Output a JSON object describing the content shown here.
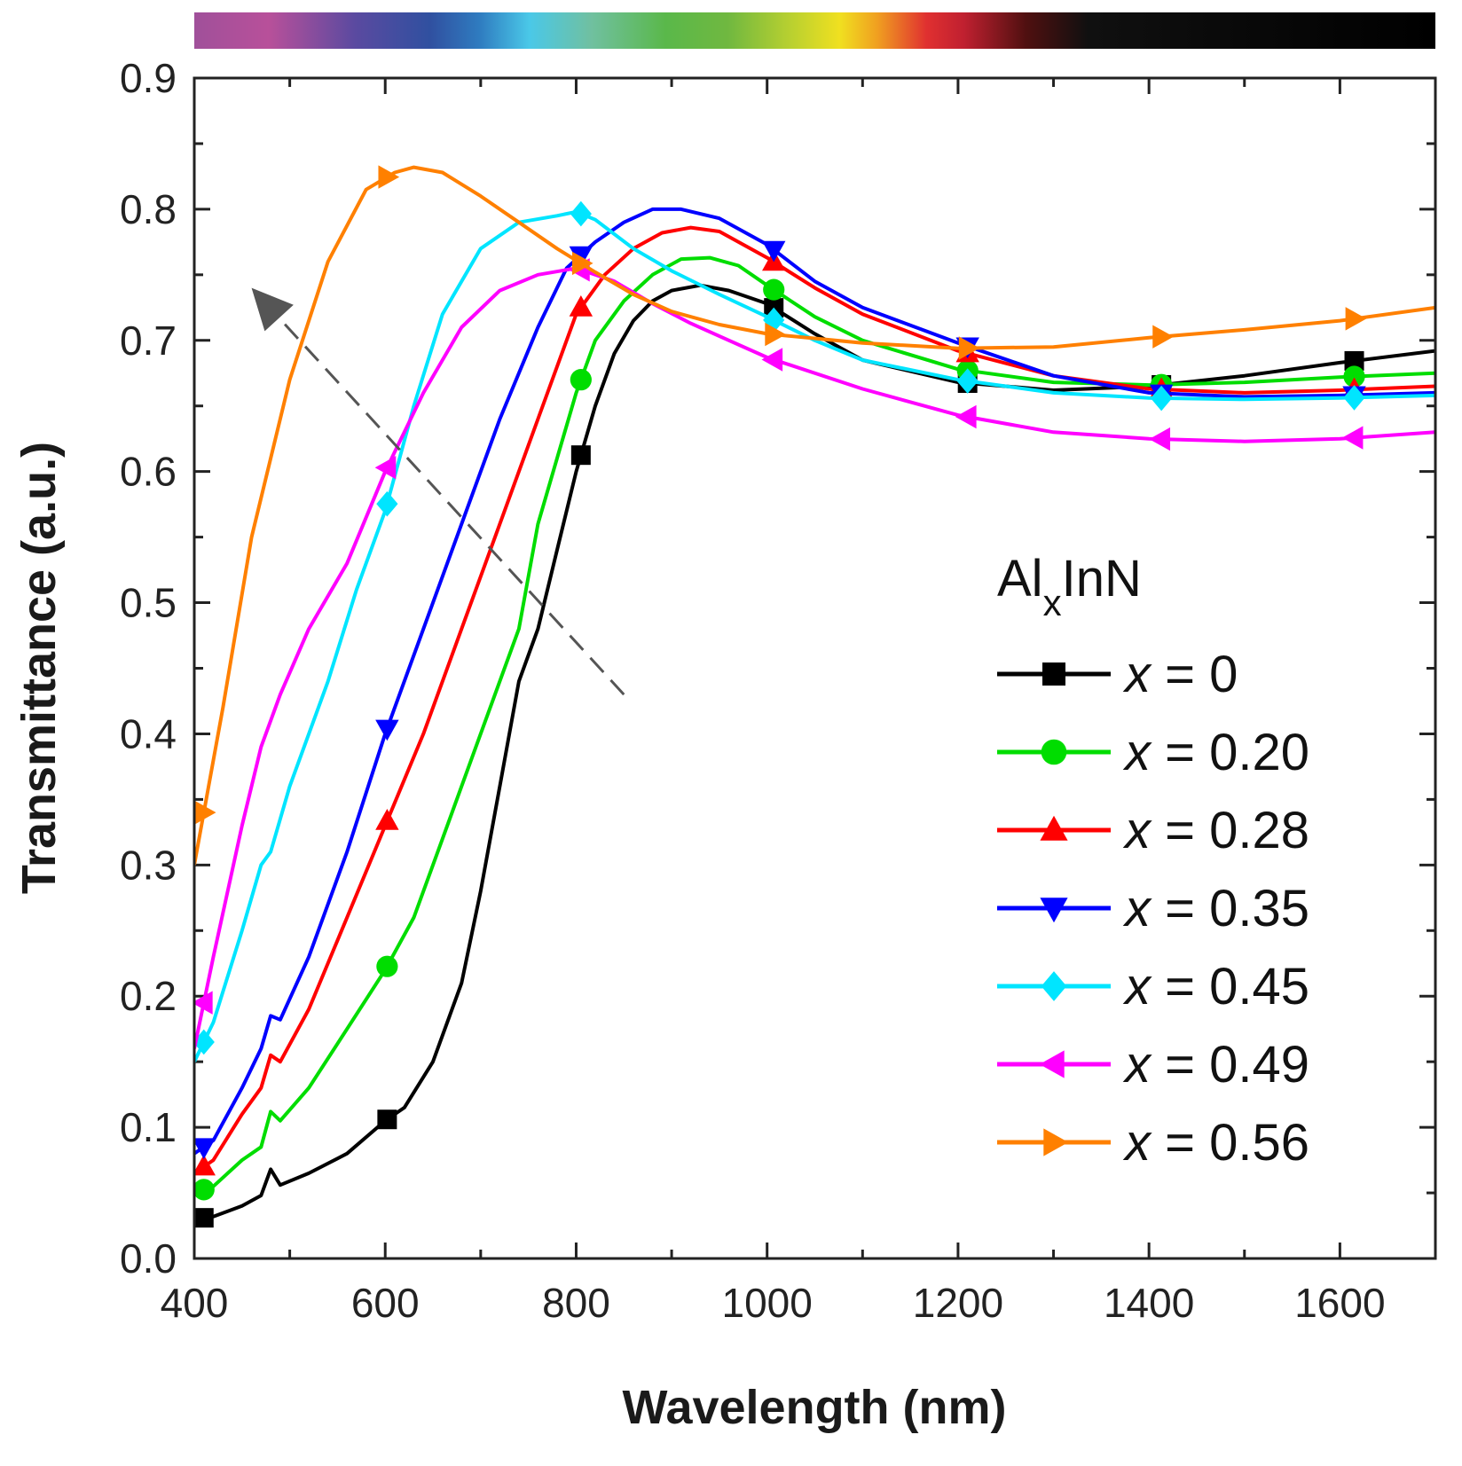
{
  "chart_data": {
    "type": "line",
    "xlabel": "Wavelength (nm)",
    "ylabel": "Transmittance (a.u.)",
    "xlim": [
      400,
      1700
    ],
    "ylim": [
      0.0,
      0.9
    ],
    "xticks": [
      "400",
      "600",
      "800",
      "1000",
      "1200",
      "1400",
      "1600"
    ],
    "yticks": [
      "0.0",
      "0.1",
      "0.2",
      "0.3",
      "0.4",
      "0.5",
      "0.6",
      "0.7",
      "0.8",
      "0.9"
    ],
    "legend": {
      "title_main": "Al",
      "title_sub": "x",
      "title_rest": "InN",
      "position": "right"
    },
    "series": [
      {
        "name": "x = 0",
        "var": "x",
        "rest": " = 0",
        "color": "#000000",
        "marker": "square",
        "points": [
          [
            400,
            0.03
          ],
          [
            420,
            0.032
          ],
          [
            450,
            0.04
          ],
          [
            470,
            0.048
          ],
          [
            480,
            0.068
          ],
          [
            490,
            0.056
          ],
          [
            520,
            0.065
          ],
          [
            560,
            0.08
          ],
          [
            600,
            0.105
          ],
          [
            620,
            0.115
          ],
          [
            650,
            0.15
          ],
          [
            680,
            0.21
          ],
          [
            700,
            0.28
          ],
          [
            720,
            0.36
          ],
          [
            740,
            0.44
          ],
          [
            760,
            0.48
          ],
          [
            780,
            0.54
          ],
          [
            800,
            0.6
          ],
          [
            820,
            0.65
          ],
          [
            840,
            0.69
          ],
          [
            860,
            0.715
          ],
          [
            880,
            0.73
          ],
          [
            900,
            0.738
          ],
          [
            930,
            0.742
          ],
          [
            960,
            0.738
          ],
          [
            1000,
            0.728
          ],
          [
            1050,
            0.705
          ],
          [
            1100,
            0.685
          ],
          [
            1200,
            0.668
          ],
          [
            1300,
            0.662
          ],
          [
            1400,
            0.665
          ],
          [
            1500,
            0.673
          ],
          [
            1600,
            0.683
          ],
          [
            1700,
            0.692
          ]
        ],
        "markers_x": [
          410,
          602,
          805,
          1007,
          1210,
          1413,
          1615
        ]
      },
      {
        "name": "x = 0.20",
        "var": "x",
        "rest": " = 0.20",
        "color": "#00dd00",
        "marker": "circle",
        "points": [
          [
            400,
            0.05
          ],
          [
            420,
            0.055
          ],
          [
            450,
            0.075
          ],
          [
            470,
            0.085
          ],
          [
            480,
            0.112
          ],
          [
            490,
            0.105
          ],
          [
            520,
            0.13
          ],
          [
            560,
            0.175
          ],
          [
            600,
            0.22
          ],
          [
            630,
            0.26
          ],
          [
            660,
            0.32
          ],
          [
            700,
            0.4
          ],
          [
            740,
            0.48
          ],
          [
            760,
            0.56
          ],
          [
            780,
            0.61
          ],
          [
            800,
            0.66
          ],
          [
            820,
            0.7
          ],
          [
            850,
            0.73
          ],
          [
            880,
            0.75
          ],
          [
            910,
            0.762
          ],
          [
            940,
            0.763
          ],
          [
            970,
            0.757
          ],
          [
            1000,
            0.742
          ],
          [
            1050,
            0.718
          ],
          [
            1100,
            0.7
          ],
          [
            1200,
            0.678
          ],
          [
            1300,
            0.668
          ],
          [
            1400,
            0.666
          ],
          [
            1500,
            0.668
          ],
          [
            1600,
            0.672
          ],
          [
            1700,
            0.675
          ]
        ],
        "markers_x": [
          410,
          602,
          805,
          1007,
          1210,
          1413,
          1615
        ]
      },
      {
        "name": "x = 0.28",
        "var": "x",
        "rest": " = 0.28",
        "color": "#ff0000",
        "marker": "triangle-up",
        "points": [
          [
            400,
            0.065
          ],
          [
            420,
            0.075
          ],
          [
            450,
            0.11
          ],
          [
            470,
            0.13
          ],
          [
            480,
            0.155
          ],
          [
            490,
            0.15
          ],
          [
            520,
            0.19
          ],
          [
            560,
            0.26
          ],
          [
            600,
            0.33
          ],
          [
            640,
            0.4
          ],
          [
            680,
            0.48
          ],
          [
            720,
            0.56
          ],
          [
            760,
            0.64
          ],
          [
            800,
            0.72
          ],
          [
            830,
            0.75
          ],
          [
            860,
            0.77
          ],
          [
            890,
            0.782
          ],
          [
            920,
            0.786
          ],
          [
            950,
            0.783
          ],
          [
            1000,
            0.763
          ],
          [
            1050,
            0.74
          ],
          [
            1100,
            0.72
          ],
          [
            1200,
            0.692
          ],
          [
            1300,
            0.673
          ],
          [
            1400,
            0.663
          ],
          [
            1500,
            0.66
          ],
          [
            1600,
            0.662
          ],
          [
            1700,
            0.665
          ]
        ],
        "markers_x": [
          410,
          602,
          805,
          1007,
          1210,
          1413,
          1615
        ]
      },
      {
        "name": "x = 0.35",
        "var": "x",
        "rest": " = 0.35",
        "color": "#0000ff",
        "marker": "triangle-down",
        "points": [
          [
            400,
            0.08
          ],
          [
            420,
            0.09
          ],
          [
            450,
            0.13
          ],
          [
            470,
            0.16
          ],
          [
            480,
            0.185
          ],
          [
            490,
            0.182
          ],
          [
            520,
            0.23
          ],
          [
            560,
            0.31
          ],
          [
            600,
            0.4
          ],
          [
            640,
            0.48
          ],
          [
            680,
            0.56
          ],
          [
            720,
            0.64
          ],
          [
            760,
            0.71
          ],
          [
            790,
            0.755
          ],
          [
            820,
            0.775
          ],
          [
            850,
            0.79
          ],
          [
            880,
            0.8
          ],
          [
            910,
            0.8
          ],
          [
            950,
            0.793
          ],
          [
            1000,
            0.773
          ],
          [
            1050,
            0.745
          ],
          [
            1100,
            0.725
          ],
          [
            1200,
            0.698
          ],
          [
            1300,
            0.673
          ],
          [
            1400,
            0.66
          ],
          [
            1500,
            0.657
          ],
          [
            1600,
            0.658
          ],
          [
            1700,
            0.66
          ]
        ],
        "markers_x": [
          410,
          602,
          805,
          1007,
          1210,
          1413,
          1615
        ]
      },
      {
        "name": "x = 0.45",
        "var": "x",
        "rest": " = 0.45",
        "color": "#00e5ff",
        "marker": "diamond",
        "points": [
          [
            400,
            0.15
          ],
          [
            420,
            0.18
          ],
          [
            450,
            0.25
          ],
          [
            470,
            0.3
          ],
          [
            480,
            0.31
          ],
          [
            500,
            0.36
          ],
          [
            540,
            0.44
          ],
          [
            570,
            0.51
          ],
          [
            600,
            0.57
          ],
          [
            630,
            0.65
          ],
          [
            660,
            0.72
          ],
          [
            700,
            0.77
          ],
          [
            740,
            0.79
          ],
          [
            780,
            0.795
          ],
          [
            800,
            0.798
          ],
          [
            820,
            0.792
          ],
          [
            860,
            0.77
          ],
          [
            900,
            0.753
          ],
          [
            950,
            0.735
          ],
          [
            1000,
            0.718
          ],
          [
            1050,
            0.7
          ],
          [
            1100,
            0.685
          ],
          [
            1200,
            0.67
          ],
          [
            1300,
            0.66
          ],
          [
            1400,
            0.656
          ],
          [
            1500,
            0.655
          ],
          [
            1600,
            0.656
          ],
          [
            1700,
            0.658
          ]
        ],
        "markers_x": [
          410,
          602,
          805,
          1007,
          1210,
          1413,
          1615
        ]
      },
      {
        "name": "x = 0.49",
        "var": "x",
        "rest": " = 0.49",
        "color": "#ff00ff",
        "marker": "triangle-left",
        "points": [
          [
            400,
            0.16
          ],
          [
            420,
            0.23
          ],
          [
            450,
            0.33
          ],
          [
            470,
            0.39
          ],
          [
            490,
            0.43
          ],
          [
            520,
            0.48
          ],
          [
            560,
            0.53
          ],
          [
            600,
            0.6
          ],
          [
            640,
            0.66
          ],
          [
            680,
            0.71
          ],
          [
            720,
            0.738
          ],
          [
            760,
            0.75
          ],
          [
            800,
            0.755
          ],
          [
            840,
            0.745
          ],
          [
            880,
            0.728
          ],
          [
            920,
            0.713
          ],
          [
            960,
            0.7
          ],
          [
            1000,
            0.687
          ],
          [
            1100,
            0.663
          ],
          [
            1200,
            0.643
          ],
          [
            1300,
            0.63
          ],
          [
            1400,
            0.625
          ],
          [
            1500,
            0.623
          ],
          [
            1600,
            0.625
          ],
          [
            1700,
            0.63
          ]
        ],
        "markers_x": [
          410,
          602,
          805,
          1007,
          1210,
          1413,
          1615
        ]
      },
      {
        "name": "x = 0.56",
        "var": "x",
        "rest": " = 0.56",
        "color": "#ff8000",
        "marker": "triangle-right",
        "points": [
          [
            400,
            0.3
          ],
          [
            430,
            0.42
          ],
          [
            460,
            0.55
          ],
          [
            500,
            0.67
          ],
          [
            540,
            0.76
          ],
          [
            580,
            0.815
          ],
          [
            610,
            0.828
          ],
          [
            630,
            0.832
          ],
          [
            660,
            0.828
          ],
          [
            700,
            0.81
          ],
          [
            740,
            0.79
          ],
          [
            780,
            0.77
          ],
          [
            820,
            0.752
          ],
          [
            860,
            0.735
          ],
          [
            900,
            0.722
          ],
          [
            950,
            0.712
          ],
          [
            1000,
            0.705
          ],
          [
            1100,
            0.698
          ],
          [
            1200,
            0.694
          ],
          [
            1300,
            0.695
          ],
          [
            1400,
            0.702
          ],
          [
            1500,
            0.708
          ],
          [
            1600,
            0.715
          ],
          [
            1700,
            0.725
          ]
        ],
        "markers_x": [
          410,
          602,
          805,
          1007,
          1210,
          1413,
          1615
        ]
      }
    ],
    "annotations": [
      {
        "type": "dashed-arrow",
        "from": [
          850,
          0.43
        ],
        "to": [
          460,
          0.74
        ]
      },
      {
        "type": "spectrum-bar",
        "range_x": [
          400,
          1700
        ]
      }
    ]
  }
}
